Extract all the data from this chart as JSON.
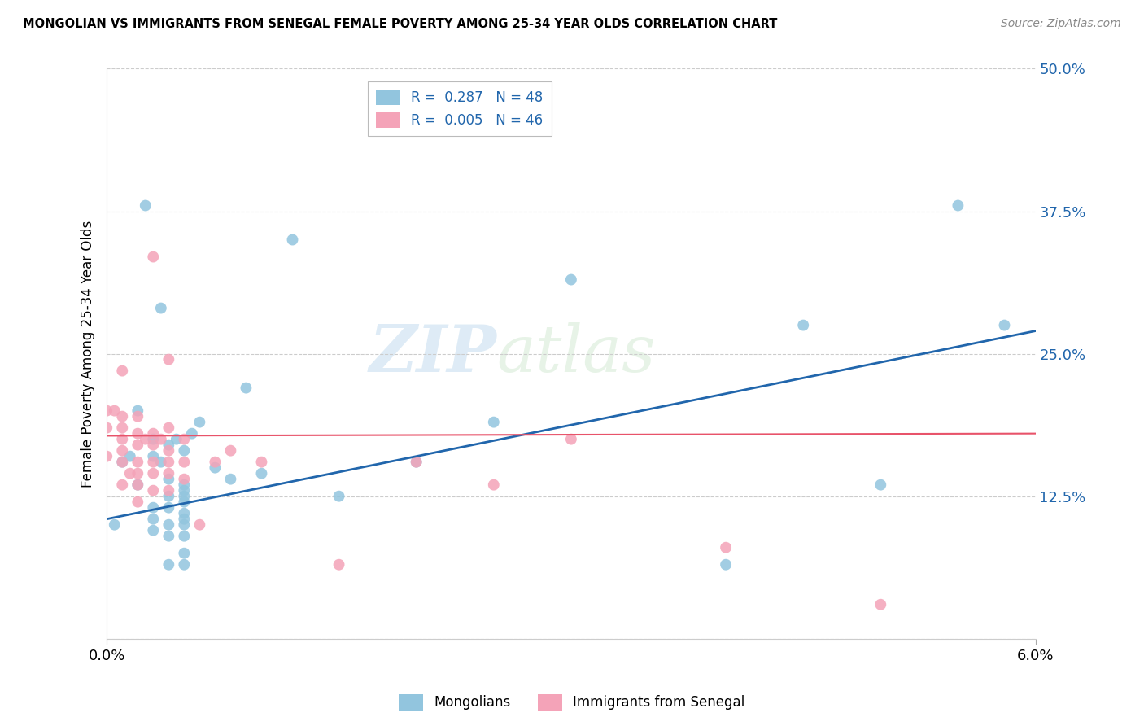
{
  "title": "MONGOLIAN VS IMMIGRANTS FROM SENEGAL FEMALE POVERTY AMONG 25-34 YEAR OLDS CORRELATION CHART",
  "source": "Source: ZipAtlas.com",
  "xlabel_mongolians": "Mongolians",
  "xlabel_senegal": "Immigrants from Senegal",
  "ylabel": "Female Poverty Among 25-34 Year Olds",
  "mongolian_R": 0.287,
  "mongolian_N": 48,
  "senegal_R": 0.005,
  "senegal_N": 46,
  "xlim": [
    0.0,
    0.06
  ],
  "ylim": [
    0.0,
    0.5
  ],
  "yticks": [
    0.0,
    0.125,
    0.25,
    0.375,
    0.5
  ],
  "ytick_labels": [
    "",
    "12.5%",
    "25.0%",
    "37.5%",
    "50.0%"
  ],
  "xticks": [
    0.0,
    0.06
  ],
  "xtick_labels": [
    "0.0%",
    "6.0%"
  ],
  "mongolian_color": "#92c5de",
  "senegal_color": "#f4a3b8",
  "mongolian_line_color": "#2166ac",
  "senegal_line_color": "#e8536a",
  "watermark_text": "ZIP",
  "watermark_text2": "atlas",
  "mongolian_x": [
    0.0005,
    0.001,
    0.0015,
    0.002,
    0.002,
    0.0025,
    0.003,
    0.003,
    0.003,
    0.003,
    0.0035,
    0.003,
    0.0035,
    0.004,
    0.004,
    0.004,
    0.004,
    0.004,
    0.004,
    0.004,
    0.0045,
    0.005,
    0.005,
    0.005,
    0.005,
    0.005,
    0.005,
    0.005,
    0.005,
    0.005,
    0.005,
    0.005,
    0.0055,
    0.006,
    0.007,
    0.008,
    0.009,
    0.01,
    0.012,
    0.015,
    0.02,
    0.025,
    0.03,
    0.04,
    0.045,
    0.05,
    0.055,
    0.058
  ],
  "mongolian_y": [
    0.1,
    0.155,
    0.16,
    0.135,
    0.2,
    0.38,
    0.095,
    0.105,
    0.115,
    0.16,
    0.155,
    0.175,
    0.29,
    0.065,
    0.09,
    0.1,
    0.115,
    0.125,
    0.14,
    0.17,
    0.175,
    0.065,
    0.075,
    0.09,
    0.1,
    0.105,
    0.11,
    0.12,
    0.125,
    0.13,
    0.135,
    0.165,
    0.18,
    0.19,
    0.15,
    0.14,
    0.22,
    0.145,
    0.35,
    0.125,
    0.155,
    0.19,
    0.315,
    0.065,
    0.275,
    0.135,
    0.38,
    0.275
  ],
  "senegal_x": [
    0.0,
    0.0,
    0.0,
    0.0005,
    0.001,
    0.001,
    0.001,
    0.001,
    0.001,
    0.001,
    0.001,
    0.0015,
    0.002,
    0.002,
    0.002,
    0.002,
    0.002,
    0.002,
    0.002,
    0.0025,
    0.003,
    0.003,
    0.003,
    0.003,
    0.003,
    0.003,
    0.0035,
    0.004,
    0.004,
    0.004,
    0.004,
    0.004,
    0.004,
    0.005,
    0.005,
    0.005,
    0.006,
    0.007,
    0.008,
    0.01,
    0.015,
    0.02,
    0.025,
    0.03,
    0.04,
    0.05
  ],
  "senegal_y": [
    0.16,
    0.185,
    0.2,
    0.2,
    0.135,
    0.155,
    0.165,
    0.175,
    0.185,
    0.195,
    0.235,
    0.145,
    0.12,
    0.135,
    0.145,
    0.155,
    0.17,
    0.18,
    0.195,
    0.175,
    0.13,
    0.145,
    0.155,
    0.17,
    0.18,
    0.335,
    0.175,
    0.13,
    0.145,
    0.155,
    0.165,
    0.185,
    0.245,
    0.14,
    0.155,
    0.175,
    0.1,
    0.155,
    0.165,
    0.155,
    0.065,
    0.155,
    0.135,
    0.175,
    0.08,
    0.03
  ],
  "blue_line_x0": 0.0,
  "blue_line_y0": 0.105,
  "blue_line_x1": 0.06,
  "blue_line_y1": 0.27,
  "pink_line_x0": 0.0,
  "pink_line_y0": 0.178,
  "pink_line_x1": 0.06,
  "pink_line_y1": 0.18
}
